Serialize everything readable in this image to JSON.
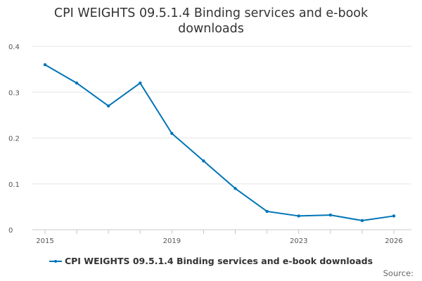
{
  "chart_data": {
    "type": "line",
    "title_lines": [
      "CPI WEIGHTS 09.5.1.4 Binding services and e-book",
      "downloads"
    ],
    "title": "CPI WEIGHTS 09.5.1.4 Binding services and e-book downloads",
    "xlabel": "",
    "ylabel": "",
    "x": [
      2015,
      2016,
      2017,
      2018,
      2019,
      2020,
      2021,
      2022,
      2023,
      2024,
      2025,
      2026
    ],
    "xlim": [
      2015,
      2026
    ],
    "xticks": [
      "2015",
      "2019",
      "2023",
      "2026"
    ],
    "ylim": [
      0,
      0.4
    ],
    "yticks": [
      "0",
      "0.1",
      "0.2",
      "0.3",
      "0.4"
    ],
    "grid": true,
    "legend_position": "bottom",
    "series": [
      {
        "name": "CPI WEIGHTS 09.5.1.4 Binding services and e-book downloads",
        "color": "#0074b8",
        "values": [
          0.36,
          0.32,
          0.27,
          0.32,
          0.21,
          0.15,
          0.09,
          0.04,
          0.03,
          0.032,
          0.02,
          0.03
        ]
      }
    ]
  },
  "source_label": "Source:"
}
